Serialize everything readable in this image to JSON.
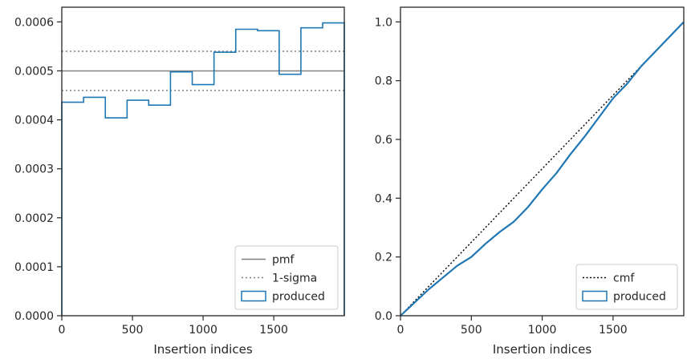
{
  "chart_data": [
    {
      "type": "step",
      "panel": "left",
      "xlabel": "Insertion indices",
      "ylabel": "",
      "xlim": [
        0,
        1999
      ],
      "ylim": [
        0,
        0.00063
      ],
      "xticks": [
        0,
        500,
        1000,
        1500
      ],
      "xtick_labels": [
        "0",
        "500",
        "1000",
        "1500"
      ],
      "yticks": [
        0,
        0.0001,
        0.0002,
        0.0003,
        0.0004,
        0.0005,
        0.0006
      ],
      "ytick_labels": [
        "0.0000",
        "0.0001",
        "0.0002",
        "0.0003",
        "0.0004",
        "0.0005",
        "0.0006"
      ],
      "legend_position": "lower-right",
      "pmf": {
        "name": "pmf",
        "value": 0.0005,
        "color": "#808080"
      },
      "sigma": {
        "name": "1-sigma",
        "values": [
          0.00046,
          0.00054
        ],
        "color": "#808080"
      },
      "histogram": {
        "name": "produced",
        "color": "#1f77b4",
        "bin_edges": [
          0,
          154,
          308,
          462,
          615,
          769,
          923,
          1077,
          1231,
          1385,
          1538,
          1692,
          1846,
          1999
        ],
        "values": [
          0.000436,
          0.000446,
          0.000404,
          0.00044,
          0.00043,
          0.000498,
          0.000472,
          0.000538,
          0.000585,
          0.000582,
          0.000493,
          0.000588,
          0.000598
        ]
      }
    },
    {
      "type": "line",
      "panel": "right",
      "xlabel": "Insertion indices",
      "ylabel": "",
      "xlim": [
        0,
        1999
      ],
      "ylim": [
        0,
        1.05
      ],
      "xticks": [
        0,
        500,
        1000,
        1500
      ],
      "xtick_labels": [
        "0",
        "500",
        "1000",
        "1500"
      ],
      "yticks": [
        0,
        0.2,
        0.4,
        0.6,
        0.8,
        1.0
      ],
      "ytick_labels": [
        "0.0",
        "0.2",
        "0.4",
        "0.6",
        "0.8",
        "1.0"
      ],
      "legend_position": "lower-right",
      "cmf": {
        "name": "cmf",
        "x": [
          0,
          1999
        ],
        "y": [
          0,
          1.0
        ],
        "color": "#000000"
      },
      "produced": {
        "name": "produced",
        "color": "#1f77b4",
        "x": [
          0,
          100,
          200,
          300,
          400,
          500,
          600,
          700,
          800,
          900,
          1000,
          1100,
          1200,
          1300,
          1400,
          1500,
          1600,
          1700,
          1800,
          1900,
          1999
        ],
        "y": [
          0,
          0.045,
          0.09,
          0.13,
          0.17,
          0.2,
          0.245,
          0.285,
          0.32,
          0.37,
          0.43,
          0.485,
          0.55,
          0.61,
          0.675,
          0.74,
          0.79,
          0.85,
          0.9,
          0.95,
          1.0
        ]
      }
    }
  ]
}
